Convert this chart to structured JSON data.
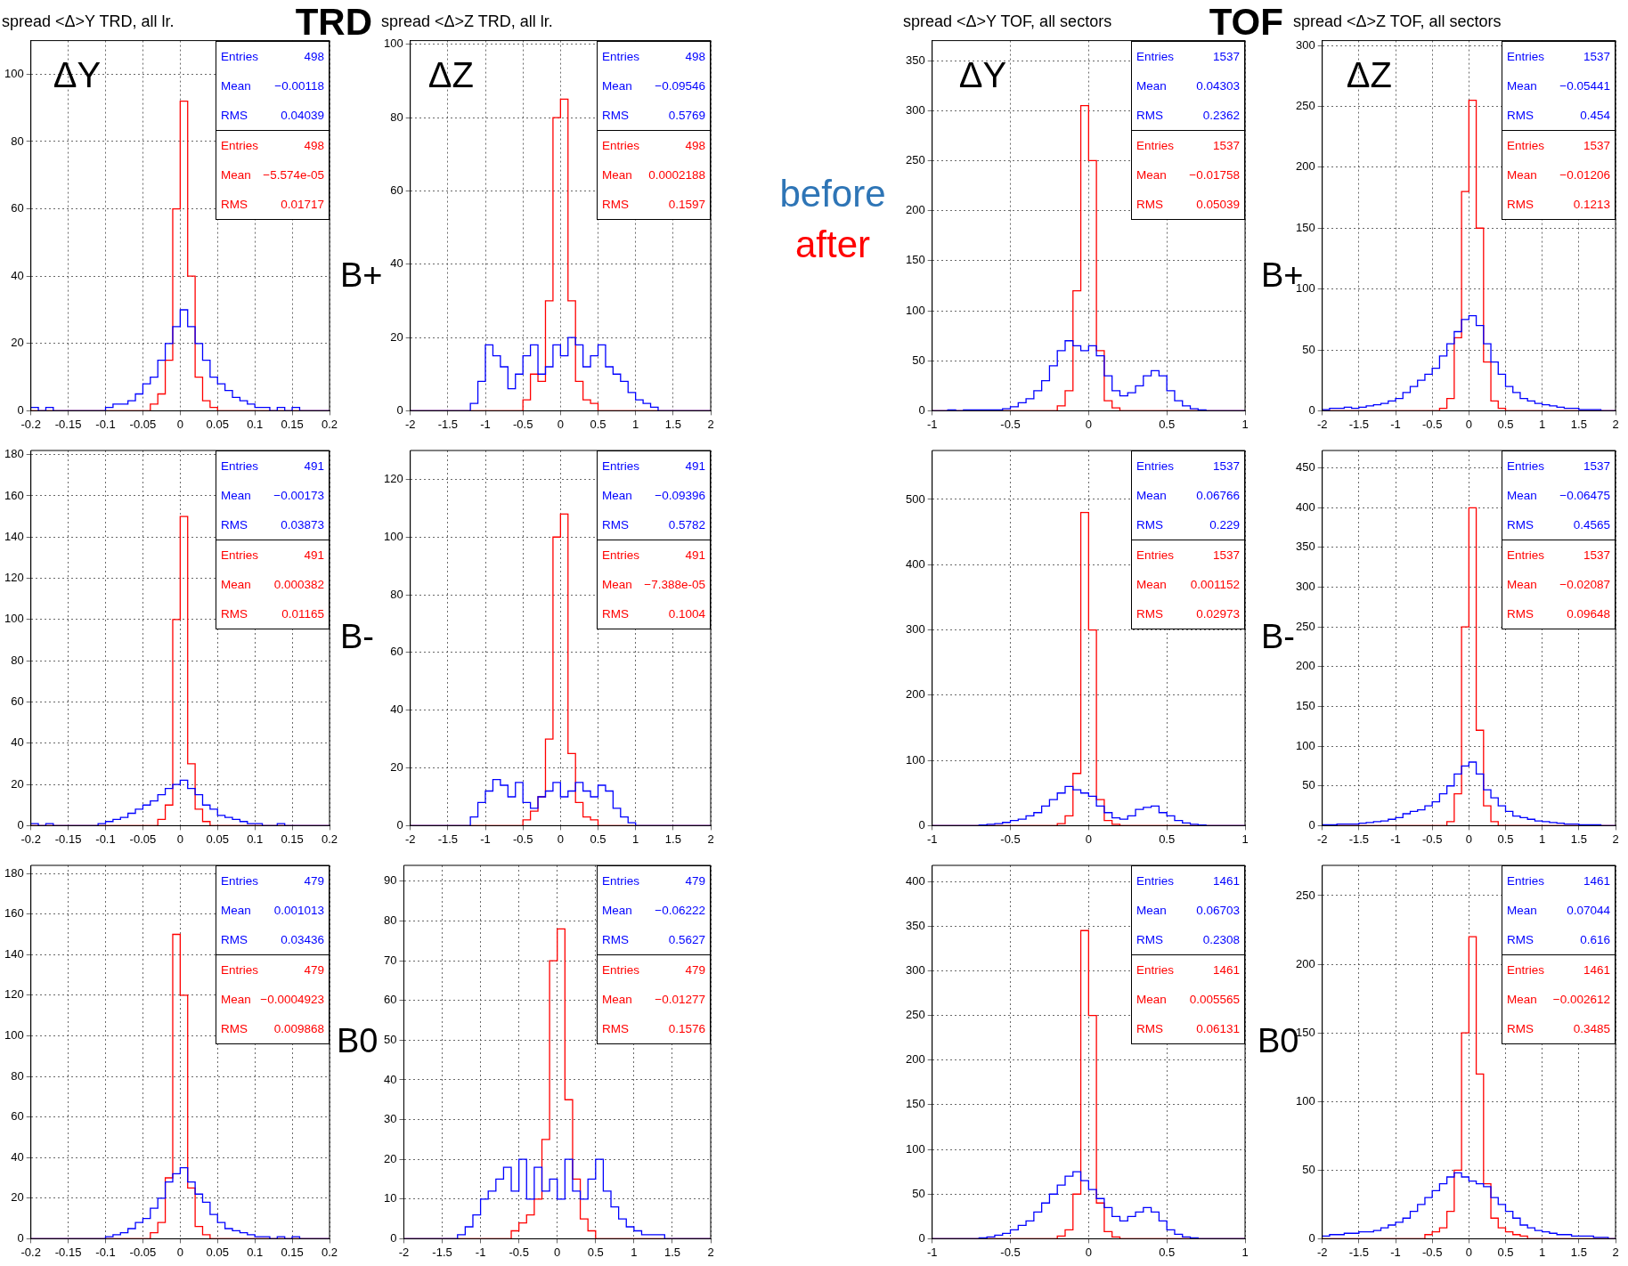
{
  "chart_data": [
    {
      "type": "histogram",
      "title": "spread <Δ>Y TRD, all lr.",
      "grid": true,
      "xlim": [
        -0.2,
        0.2
      ],
      "xticks": [
        -0.2,
        -0.15,
        -0.1,
        -0.05,
        0,
        0.05,
        0.1,
        0.15,
        0.2
      ],
      "ylim": [
        0,
        110
      ],
      "yticks": [
        0,
        20,
        40,
        60,
        80,
        100
      ],
      "bins": [
        -0.2,
        -0.19,
        -0.18,
        -0.17,
        -0.16,
        -0.15,
        -0.14,
        -0.13,
        -0.12,
        -0.11,
        -0.1,
        -0.09,
        -0.08,
        -0.07,
        -0.06,
        -0.05,
        -0.04,
        -0.03,
        -0.02,
        -0.01,
        0,
        0.01,
        0.02,
        0.03,
        0.04,
        0.05,
        0.06,
        0.07,
        0.08,
        0.09,
        0.1,
        0.11,
        0.12,
        0.13,
        0.14,
        0.15,
        0.16,
        0.17,
        0.18,
        0.19,
        0.2
      ],
      "series": [
        {
          "color": "#0000ff",
          "values": [
            1,
            0,
            1,
            0,
            0,
            0,
            0,
            0,
            0,
            0,
            1,
            2,
            2,
            3,
            5,
            8,
            10,
            15,
            20,
            25,
            30,
            25,
            20,
            15,
            10,
            8,
            6,
            4,
            3,
            2,
            1,
            1,
            0,
            1,
            0,
            1,
            0,
            0,
            0,
            0
          ]
        },
        {
          "color": "#ff0000",
          "values": [
            0,
            0,
            0,
            0,
            0,
            0,
            0,
            0,
            0,
            0,
            0,
            0,
            0,
            0,
            0,
            0,
            2,
            5,
            15,
            60,
            92,
            40,
            10,
            3,
            1,
            0,
            0,
            0,
            0,
            0,
            0,
            0,
            0,
            0,
            0,
            0,
            0,
            0,
            0,
            0
          ]
        }
      ],
      "annotations": [
        "Entries 498",
        "Mean −0.00118",
        "RMS 0.04039",
        "Entries 498",
        "Mean −5.574e-05",
        "RMS 0.01717",
        "ΔY",
        "TRD"
      ]
    },
    {
      "type": "histogram",
      "title": "spread <Δ>Z TRD, all lr.",
      "grid": true,
      "xlim": [
        -2,
        2
      ],
      "xticks": [
        -2,
        -1.5,
        -1,
        -0.5,
        0,
        0.5,
        1,
        1.5,
        2
      ],
      "ylim": [
        0,
        101
      ],
      "yticks": [
        0,
        20,
        40,
        60,
        80,
        100
      ],
      "bins": [
        -2,
        -1.9,
        -1.8,
        -1.7,
        -1.6,
        -1.5,
        -1.4,
        -1.3,
        -1.2,
        -1.1,
        -1,
        -0.9,
        -0.8,
        -0.7,
        -0.6,
        -0.5,
        -0.4,
        -0.3,
        -0.2,
        -0.1,
        0,
        0.1,
        0.2,
        0.3,
        0.4,
        0.5,
        0.6,
        0.7,
        0.8,
        0.9,
        1,
        1.1,
        1.2,
        1.3,
        1.4,
        1.5,
        1.6,
        1.7,
        1.8,
        1.9,
        2
      ],
      "series": [
        {
          "color": "#0000ff",
          "values": [
            0,
            0,
            0,
            0,
            0,
            0,
            0,
            0,
            2,
            8,
            18,
            15,
            12,
            6,
            10,
            15,
            18,
            10,
            12,
            18,
            15,
            20,
            18,
            12,
            15,
            18,
            12,
            10,
            8,
            5,
            3,
            2,
            1,
            0,
            0,
            0,
            0,
            0,
            0,
            0
          ]
        },
        {
          "color": "#ff0000",
          "values": [
            0,
            0,
            0,
            0,
            0,
            0,
            0,
            0,
            0,
            0,
            0,
            0,
            0,
            0,
            0,
            3,
            10,
            8,
            30,
            80,
            85,
            30,
            8,
            3,
            2,
            0,
            0,
            0,
            0,
            0,
            0,
            0,
            0,
            0,
            0,
            0,
            0,
            0,
            0,
            0
          ]
        }
      ],
      "annotations": [
        "Entries 498",
        "Mean −0.09546",
        "RMS 0.5769",
        "Entries 498",
        "Mean 0.0002188",
        "RMS 0.1597",
        "ΔZ",
        "B+"
      ]
    },
    {
      "type": "other",
      "series": [
        {
          "name": "before",
          "color": "#2e75b6"
        },
        {
          "name": "after",
          "color": "#ff0000"
        }
      ]
    },
    {
      "type": "histogram",
      "title": "spread <Δ>Y TOF, all sectors",
      "grid": true,
      "xlim": [
        -1,
        1
      ],
      "xticks": [
        -1,
        -0.5,
        0,
        0.5,
        1
      ],
      "ylim": [
        0,
        370
      ],
      "yticks": [
        0,
        50,
        100,
        150,
        200,
        250,
        300,
        350
      ],
      "bins": [
        -1,
        -0.95,
        -0.9,
        -0.85,
        -0.8,
        -0.75,
        -0.7,
        -0.65,
        -0.6,
        -0.55,
        -0.5,
        -0.45,
        -0.4,
        -0.35,
        -0.3,
        -0.25,
        -0.2,
        -0.15,
        -0.1,
        -0.05,
        0,
        0.05,
        0.1,
        0.15,
        0.2,
        0.25,
        0.3,
        0.35,
        0.4,
        0.45,
        0.5,
        0.55,
        0.6,
        0.65,
        0.7,
        0.75,
        0.8,
        0.85,
        0.9,
        0.95,
        1
      ],
      "series": [
        {
          "color": "#0000ff",
          "values": [
            0,
            0,
            1,
            0,
            1,
            1,
            1,
            1,
            1,
            2,
            4,
            8,
            12,
            20,
            30,
            45,
            60,
            70,
            65,
            60,
            65,
            55,
            35,
            20,
            15,
            18,
            25,
            35,
            40,
            35,
            20,
            10,
            5,
            2,
            1,
            0,
            0,
            0,
            0,
            0
          ]
        },
        {
          "color": "#ff0000",
          "values": [
            0,
            0,
            0,
            0,
            0,
            0,
            0,
            0,
            0,
            0,
            0,
            0,
            0,
            0,
            0,
            0,
            5,
            20,
            120,
            305,
            250,
            60,
            10,
            3,
            0,
            0,
            0,
            0,
            0,
            0,
            0,
            0,
            0,
            0,
            0,
            0,
            0,
            0,
            0,
            0
          ]
        }
      ],
      "annotations": [
        "Entries 1537",
        "Mean 0.04303",
        "RMS 0.2362",
        "Entries 1537",
        "Mean −0.01758",
        "RMS 0.05039",
        "ΔY",
        "TOF"
      ]
    },
    {
      "type": "histogram",
      "title": "spread <Δ>Z TOF, all sectors",
      "grid": true,
      "xlim": [
        -2,
        2
      ],
      "xticks": [
        -2,
        -1.5,
        -1,
        -0.5,
        0,
        0.5,
        1,
        1.5,
        2
      ],
      "ylim": [
        0,
        304
      ],
      "yticks": [
        0,
        50,
        100,
        150,
        200,
        250,
        300
      ],
      "bins": [
        -2,
        -1.9,
        -1.8,
        -1.7,
        -1.6,
        -1.5,
        -1.4,
        -1.3,
        -1.2,
        -1.1,
        -1,
        -0.9,
        -0.8,
        -0.7,
        -0.6,
        -0.5,
        -0.4,
        -0.3,
        -0.2,
        -0.1,
        0,
        0.1,
        0.2,
        0.3,
        0.4,
        0.5,
        0.6,
        0.7,
        0.8,
        0.9,
        1,
        1.1,
        1.2,
        1.3,
        1.4,
        1.5,
        1.6,
        1.7,
        1.8,
        1.9,
        2
      ],
      "series": [
        {
          "color": "#0000ff",
          "values": [
            1,
            2,
            2,
            3,
            2,
            3,
            4,
            5,
            6,
            8,
            10,
            15,
            20,
            25,
            30,
            35,
            45,
            55,
            65,
            75,
            78,
            70,
            55,
            40,
            30,
            20,
            15,
            10,
            8,
            6,
            5,
            4,
            3,
            2,
            2,
            1,
            1,
            1,
            0,
            0
          ]
        },
        {
          "color": "#ff0000",
          "values": [
            0,
            0,
            0,
            0,
            0,
            0,
            0,
            0,
            0,
            0,
            0,
            0,
            0,
            0,
            0,
            0,
            2,
            10,
            60,
            180,
            255,
            150,
            40,
            8,
            2,
            0,
            0,
            0,
            0,
            0,
            0,
            0,
            0,
            0,
            0,
            0,
            0,
            0,
            0,
            0
          ]
        }
      ],
      "annotations": [
        "Entries 1537",
        "Mean −0.05441",
        "RMS 0.454",
        "Entries 1537",
        "Mean −0.01206",
        "RMS 0.1213",
        "ΔZ",
        "B+"
      ]
    },
    {
      "type": "histogram",
      "grid": true,
      "xlim": [
        -0.2,
        0.2
      ],
      "xticks": [
        -0.2,
        -0.15,
        -0.1,
        -0.05,
        0,
        0.05,
        0.1,
        0.15,
        0.2
      ],
      "ylim": [
        0,
        182
      ],
      "yticks": [
        0,
        20,
        40,
        60,
        80,
        100,
        120,
        140,
        160,
        180
      ],
      "bins": [
        -0.2,
        -0.19,
        -0.18,
        -0.17,
        -0.16,
        -0.15,
        -0.14,
        -0.13,
        -0.12,
        -0.11,
        -0.1,
        -0.09,
        -0.08,
        -0.07,
        -0.06,
        -0.05,
        -0.04,
        -0.03,
        -0.02,
        -0.01,
        0,
        0.01,
        0.02,
        0.03,
        0.04,
        0.05,
        0.06,
        0.07,
        0.08,
        0.09,
        0.1,
        0.11,
        0.12,
        0.13,
        0.14,
        0.15,
        0.16,
        0.17,
        0.18,
        0.19,
        0.2
      ],
      "series": [
        {
          "color": "#0000ff",
          "values": [
            1,
            0,
            1,
            0,
            0,
            0,
            0,
            0,
            0,
            1,
            2,
            3,
            4,
            6,
            8,
            10,
            12,
            15,
            18,
            20,
            22,
            18,
            15,
            10,
            8,
            5,
            4,
            3,
            2,
            1,
            1,
            0,
            0,
            1,
            0,
            0,
            0,
            0,
            0,
            0
          ]
        },
        {
          "color": "#ff0000",
          "values": [
            0,
            0,
            0,
            0,
            0,
            0,
            0,
            0,
            0,
            0,
            0,
            0,
            0,
            0,
            0,
            0,
            0,
            3,
            10,
            100,
            150,
            30,
            8,
            2,
            0,
            0,
            0,
            0,
            0,
            0,
            0,
            0,
            0,
            0,
            0,
            0,
            0,
            0,
            0,
            0
          ]
        }
      ],
      "annotations": [
        "Entries 491",
        "Mean −0.00173",
        "RMS 0.03873",
        "Entries 491",
        "Mean 0.000382",
        "RMS 0.01165"
      ]
    },
    {
      "type": "histogram",
      "grid": true,
      "xlim": [
        -2,
        2
      ],
      "xticks": [
        -2,
        -1.5,
        -1,
        -0.5,
        0,
        0.5,
        1,
        1.5,
        2
      ],
      "ylim": [
        0,
        130
      ],
      "yticks": [
        0,
        20,
        40,
        60,
        80,
        100,
        120
      ],
      "bins": [
        -2,
        -1.9,
        -1.8,
        -1.7,
        -1.6,
        -1.5,
        -1.4,
        -1.3,
        -1.2,
        -1.1,
        -1,
        -0.9,
        -0.8,
        -0.7,
        -0.6,
        -0.5,
        -0.4,
        -0.3,
        -0.2,
        -0.1,
        0,
        0.1,
        0.2,
        0.3,
        0.4,
        0.5,
        0.6,
        0.7,
        0.8,
        0.9,
        1,
        1.1,
        1.2,
        1.3,
        1.4,
        1.5,
        1.6,
        1.7,
        1.8,
        1.9,
        2
      ],
      "series": [
        {
          "color": "#0000ff",
          "values": [
            0,
            0,
            0,
            0,
            0,
            0,
            0,
            0,
            3,
            8,
            12,
            16,
            14,
            10,
            15,
            8,
            6,
            10,
            12,
            15,
            10,
            12,
            15,
            12,
            10,
            14,
            12,
            6,
            3,
            1,
            0,
            0,
            0,
            0,
            0,
            0,
            0,
            0,
            0,
            0
          ]
        },
        {
          "color": "#ff0000",
          "values": [
            0,
            0,
            0,
            0,
            0,
            0,
            0,
            0,
            0,
            0,
            0,
            0,
            0,
            0,
            0,
            2,
            5,
            10,
            30,
            100,
            108,
            25,
            8,
            3,
            2,
            0,
            0,
            0,
            0,
            0,
            0,
            0,
            0,
            0,
            0,
            0,
            0,
            0,
            0,
            0
          ]
        }
      ],
      "annotations": [
        "Entries 491",
        "Mean −0.09396",
        "RMS 0.5782",
        "Entries 491",
        "Mean −7.388e-05",
        "RMS 0.1004",
        "B-"
      ]
    },
    {
      "type": "histogram",
      "grid": true,
      "xlim": [
        -1,
        1
      ],
      "xticks": [
        -1,
        -0.5,
        0,
        0.5,
        1
      ],
      "ylim": [
        0,
        575
      ],
      "yticks": [
        0,
        100,
        200,
        300,
        400,
        500
      ],
      "bins": [
        -1,
        -0.95,
        -0.9,
        -0.85,
        -0.8,
        -0.75,
        -0.7,
        -0.65,
        -0.6,
        -0.55,
        -0.5,
        -0.45,
        -0.4,
        -0.35,
        -0.3,
        -0.25,
        -0.2,
        -0.15,
        -0.1,
        -0.05,
        0,
        0.05,
        0.1,
        0.15,
        0.2,
        0.25,
        0.3,
        0.35,
        0.4,
        0.45,
        0.5,
        0.55,
        0.6,
        0.65,
        0.7,
        0.75,
        0.8,
        0.85,
        0.9,
        0.95,
        1
      ],
      "series": [
        {
          "color": "#0000ff",
          "values": [
            0,
            0,
            0,
            0,
            0,
            0,
            1,
            2,
            3,
            5,
            8,
            10,
            15,
            20,
            30,
            40,
            50,
            60,
            55,
            50,
            45,
            30,
            20,
            12,
            10,
            15,
            25,
            28,
            30,
            20,
            15,
            8,
            4,
            2,
            1,
            0,
            0,
            0,
            0,
            0
          ]
        },
        {
          "color": "#ff0000",
          "values": [
            0,
            0,
            0,
            0,
            0,
            0,
            0,
            0,
            0,
            0,
            0,
            0,
            0,
            0,
            0,
            0,
            3,
            15,
            80,
            480,
            300,
            40,
            8,
            2,
            0,
            0,
            0,
            0,
            0,
            0,
            0,
            0,
            0,
            0,
            0,
            0,
            0,
            0,
            0,
            0
          ]
        }
      ],
      "annotations": [
        "Entries 1537",
        "Mean 0.06766",
        "RMS 0.229",
        "Entries 1537",
        "Mean 0.001152",
        "RMS 0.02973"
      ]
    },
    {
      "type": "histogram",
      "grid": true,
      "xlim": [
        -2,
        2
      ],
      "xticks": [
        -2,
        -1.5,
        -1,
        -0.5,
        0,
        0.5,
        1,
        1.5,
        2
      ],
      "ylim": [
        0,
        472
      ],
      "yticks": [
        0,
        50,
        100,
        150,
        200,
        250,
        300,
        350,
        400,
        450
      ],
      "bins": [
        -2,
        -1.9,
        -1.8,
        -1.7,
        -1.6,
        -1.5,
        -1.4,
        -1.3,
        -1.2,
        -1.1,
        -1,
        -0.9,
        -0.8,
        -0.7,
        -0.6,
        -0.5,
        -0.4,
        -0.3,
        -0.2,
        -0.1,
        0,
        0.1,
        0.2,
        0.3,
        0.4,
        0.5,
        0.6,
        0.7,
        0.8,
        0.9,
        1,
        1.1,
        1.2,
        1.3,
        1.4,
        1.5,
        1.6,
        1.7,
        1.8,
        1.9,
        2
      ],
      "series": [
        {
          "color": "#0000ff",
          "values": [
            1,
            1,
            2,
            2,
            2,
            3,
            4,
            5,
            6,
            8,
            10,
            15,
            18,
            20,
            25,
            30,
            40,
            50,
            65,
            75,
            80,
            65,
            45,
            35,
            25,
            18,
            12,
            10,
            8,
            6,
            5,
            4,
            3,
            2,
            2,
            1,
            1,
            1,
            0,
            0
          ]
        },
        {
          "color": "#ff0000",
          "values": [
            0,
            0,
            0,
            0,
            0,
            0,
            0,
            0,
            0,
            0,
            0,
            0,
            0,
            0,
            0,
            0,
            0,
            5,
            40,
            250,
            400,
            120,
            25,
            5,
            0,
            0,
            0,
            0,
            0,
            0,
            0,
            0,
            0,
            0,
            0,
            0,
            0,
            0,
            0,
            0
          ]
        }
      ],
      "annotations": [
        "Entries 1537",
        "Mean −0.06475",
        "RMS 0.4565",
        "Entries 1537",
        "Mean −0.02087",
        "RMS 0.09648",
        "B-"
      ]
    },
    {
      "type": "histogram",
      "grid": true,
      "xlim": [
        -0.2,
        0.2
      ],
      "xticks": [
        -0.2,
        -0.15,
        -0.1,
        -0.05,
        0,
        0.05,
        0.1,
        0.15,
        0.2
      ],
      "ylim": [
        0,
        184
      ],
      "yticks": [
        0,
        20,
        40,
        60,
        80,
        100,
        120,
        140,
        160,
        180
      ],
      "bins": [
        -0.2,
        -0.19,
        -0.18,
        -0.17,
        -0.16,
        -0.15,
        -0.14,
        -0.13,
        -0.12,
        -0.11,
        -0.1,
        -0.09,
        -0.08,
        -0.07,
        -0.06,
        -0.05,
        -0.04,
        -0.03,
        -0.02,
        -0.01,
        0,
        0.01,
        0.02,
        0.03,
        0.04,
        0.05,
        0.06,
        0.07,
        0.08,
        0.09,
        0.1,
        0.11,
        0.12,
        0.13,
        0.14,
        0.15,
        0.16,
        0.17,
        0.18,
        0.19,
        0.2
      ],
      "series": [
        {
          "color": "#0000ff",
          "values": [
            0,
            0,
            0,
            0,
            0,
            0,
            0,
            0,
            0,
            0,
            1,
            2,
            3,
            5,
            8,
            10,
            15,
            20,
            28,
            32,
            35,
            28,
            22,
            18,
            12,
            8,
            5,
            4,
            3,
            2,
            1,
            1,
            0,
            1,
            0,
            1,
            0,
            0,
            0,
            0
          ]
        },
        {
          "color": "#ff0000",
          "values": [
            0,
            0,
            0,
            0,
            0,
            0,
            0,
            0,
            0,
            0,
            0,
            0,
            0,
            0,
            0,
            0,
            3,
            8,
            30,
            150,
            120,
            25,
            6,
            2,
            0,
            0,
            0,
            0,
            0,
            0,
            0,
            0,
            0,
            0,
            0,
            0,
            0,
            0,
            0,
            0
          ]
        }
      ],
      "annotations": [
        "Entries 479",
        "Mean 0.001013",
        "RMS 0.03436",
        "Entries 479",
        "Mean −0.0004923",
        "RMS 0.009868"
      ]
    },
    {
      "type": "histogram",
      "grid": true,
      "xlim": [
        -2,
        2
      ],
      "xticks": [
        -2,
        -1.5,
        -1,
        -0.5,
        0,
        0.5,
        1,
        1.5,
        2
      ],
      "ylim": [
        0,
        94
      ],
      "yticks": [
        0,
        10,
        20,
        30,
        40,
        50,
        60,
        70,
        80,
        90
      ],
      "bins": [
        -2,
        -1.9,
        -1.8,
        -1.7,
        -1.6,
        -1.5,
        -1.4,
        -1.3,
        -1.2,
        -1.1,
        -1,
        -0.9,
        -0.8,
        -0.7,
        -0.6,
        -0.5,
        -0.4,
        -0.3,
        -0.2,
        -0.1,
        0,
        0.1,
        0.2,
        0.3,
        0.4,
        0.5,
        0.6,
        0.7,
        0.8,
        0.9,
        1,
        1.1,
        1.2,
        1.3,
        1.4,
        1.5,
        1.6,
        1.7,
        1.8,
        1.9,
        2
      ],
      "series": [
        {
          "color": "#0000ff",
          "values": [
            0,
            0,
            0,
            0,
            0,
            0,
            0,
            1,
            3,
            6,
            10,
            12,
            15,
            18,
            12,
            20,
            10,
            18,
            12,
            15,
            10,
            20,
            12,
            10,
            15,
            20,
            12,
            8,
            5,
            3,
            2,
            1,
            1,
            1,
            0,
            0,
            0,
            0,
            0,
            0
          ]
        },
        {
          "color": "#ff0000",
          "values": [
            0,
            0,
            0,
            0,
            0,
            0,
            0,
            0,
            0,
            0,
            0,
            0,
            0,
            0,
            2,
            4,
            6,
            10,
            25,
            70,
            78,
            35,
            15,
            5,
            2,
            0,
            0,
            0,
            0,
            0,
            0,
            0,
            0,
            0,
            0,
            0,
            0,
            0,
            0,
            0
          ]
        }
      ],
      "annotations": [
        "Entries 479",
        "Mean −0.06222",
        "RMS 0.5627",
        "Entries 479",
        "Mean −0.01277",
        "RMS 0.1576",
        "B0"
      ]
    },
    {
      "type": "histogram",
      "grid": true,
      "xlim": [
        -1,
        1
      ],
      "xticks": [
        -1,
        -0.5,
        0,
        0.5,
        1
      ],
      "ylim": [
        0,
        418
      ],
      "yticks": [
        0,
        50,
        100,
        150,
        200,
        250,
        300,
        350,
        400
      ],
      "bins": [
        -1,
        -0.95,
        -0.9,
        -0.85,
        -0.8,
        -0.75,
        -0.7,
        -0.65,
        -0.6,
        -0.55,
        -0.5,
        -0.45,
        -0.4,
        -0.35,
        -0.3,
        -0.25,
        -0.2,
        -0.15,
        -0.1,
        -0.05,
        0,
        0.05,
        0.1,
        0.15,
        0.2,
        0.25,
        0.3,
        0.35,
        0.4,
        0.45,
        0.5,
        0.55,
        0.6,
        0.65,
        0.7,
        0.75,
        0.8,
        0.85,
        0.9,
        0.95,
        1
      ],
      "series": [
        {
          "color": "#0000ff",
          "values": [
            0,
            0,
            0,
            0,
            0,
            0,
            1,
            2,
            4,
            6,
            10,
            15,
            20,
            30,
            40,
            50,
            60,
            70,
            75,
            65,
            55,
            45,
            35,
            25,
            20,
            25,
            30,
            35,
            30,
            20,
            10,
            5,
            2,
            1,
            0,
            0,
            0,
            0,
            0,
            0
          ]
        },
        {
          "color": "#ff0000",
          "values": [
            0,
            0,
            0,
            0,
            0,
            0,
            0,
            0,
            0,
            0,
            0,
            0,
            0,
            0,
            0,
            0,
            3,
            10,
            50,
            345,
            250,
            40,
            8,
            2,
            0,
            0,
            0,
            0,
            0,
            0,
            0,
            0,
            0,
            0,
            0,
            0,
            0,
            0,
            0,
            0
          ]
        }
      ],
      "annotations": [
        "Entries 1461",
        "Mean 0.06703",
        "RMS 0.2308",
        "Entries 1461",
        "Mean 0.005565",
        "RMS 0.06131"
      ]
    },
    {
      "type": "histogram",
      "grid": true,
      "xlim": [
        -2,
        2
      ],
      "xticks": [
        -2,
        -1.5,
        -1,
        -0.5,
        0,
        0.5,
        1,
        1.5,
        2
      ],
      "ylim": [
        0,
        272
      ],
      "yticks": [
        0,
        50,
        100,
        150,
        200,
        250
      ],
      "bins": [
        -2,
        -1.9,
        -1.8,
        -1.7,
        -1.6,
        -1.5,
        -1.4,
        -1.3,
        -1.2,
        -1.1,
        -1,
        -0.9,
        -0.8,
        -0.7,
        -0.6,
        -0.5,
        -0.4,
        -0.3,
        -0.2,
        -0.1,
        0,
        0.1,
        0.2,
        0.3,
        0.4,
        0.5,
        0.6,
        0.7,
        0.8,
        0.9,
        1,
        1.1,
        1.2,
        1.3,
        1.4,
        1.5,
        1.6,
        1.7,
        1.8,
        1.9,
        2
      ],
      "series": [
        {
          "color": "#0000ff",
          "values": [
            2,
            3,
            3,
            4,
            4,
            5,
            5,
            6,
            8,
            10,
            12,
            15,
            20,
            25,
            30,
            35,
            40,
            45,
            48,
            45,
            42,
            40,
            38,
            30,
            25,
            20,
            15,
            10,
            8,
            6,
            5,
            4,
            3,
            3,
            2,
            2,
            2,
            1,
            1,
            0
          ]
        },
        {
          "color": "#ff0000",
          "values": [
            0,
            0,
            0,
            0,
            0,
            0,
            0,
            0,
            0,
            0,
            0,
            0,
            0,
            0,
            3,
            5,
            8,
            20,
            50,
            150,
            220,
            120,
            40,
            15,
            8,
            5,
            3,
            2,
            0,
            0,
            0,
            0,
            0,
            0,
            0,
            0,
            0,
            0,
            0,
            0
          ]
        }
      ],
      "annotations": [
        "Entries 1461",
        "Mean 0.07044",
        "RMS 0.616",
        "Entries 1461",
        "Mean −0.002612",
        "RMS 0.3485",
        "B0"
      ]
    }
  ]
}
